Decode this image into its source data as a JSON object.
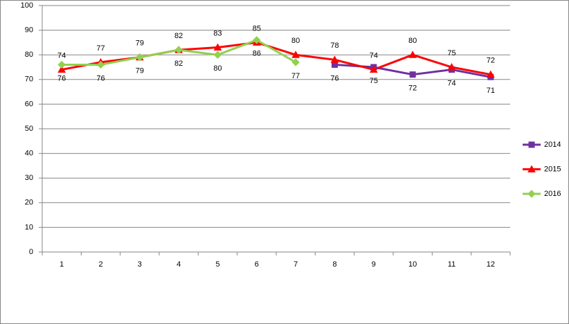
{
  "chart_data": {
    "type": "line",
    "categories": [
      "1",
      "2",
      "3",
      "4",
      "5",
      "6",
      "7",
      "8",
      "9",
      "10",
      "11",
      "12"
    ],
    "series": [
      {
        "name": "2014",
        "color": "#7030a0",
        "marker": "square",
        "label_position": "below",
        "values": [
          null,
          null,
          null,
          null,
          null,
          null,
          null,
          76,
          75,
          72,
          74,
          71
        ]
      },
      {
        "name": "2015",
        "color": "#ff0000",
        "marker": "triangle",
        "label_position": "above",
        "values": [
          74,
          77,
          79,
          82,
          83,
          85,
          80,
          78,
          74,
          80,
          75,
          72
        ]
      },
      {
        "name": "2016",
        "color": "#92d050",
        "marker": "diamond",
        "label_position": "below",
        "values": [
          76,
          76,
          79,
          82,
          80,
          86,
          77,
          null,
          null,
          null,
          null,
          null
        ]
      }
    ],
    "ylim": [
      0,
      100
    ],
    "yticks": [
      0,
      10,
      20,
      30,
      40,
      50,
      60,
      70,
      80,
      90,
      100
    ],
    "grid": true,
    "legend": "right"
  }
}
